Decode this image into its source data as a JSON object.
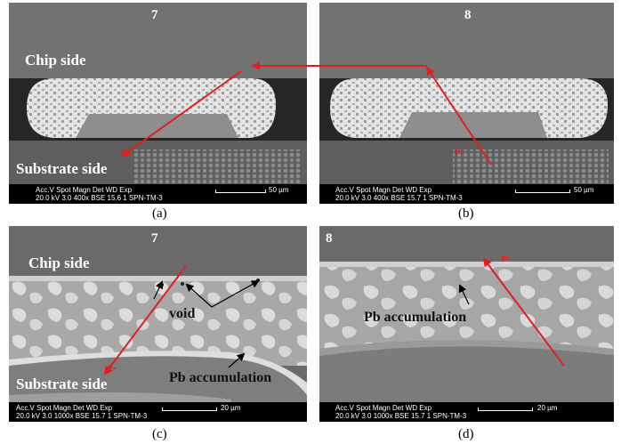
{
  "panels": {
    "a": {
      "number": "7",
      "chip_label": "Chip side",
      "substrate_label": "Substrate side",
      "electron_label": "e-",
      "databar_line1": "Acc.V  Spot Magn    Det  WD  Exp",
      "databar_line2": "20.0 kV 3.0   400x     BSE 15.6  1       SPN-TM-3",
      "scale_label": "50 µm",
      "caption": "(a)"
    },
    "b": {
      "number": "8",
      "electron_label": "e-",
      "databar_line1": "Acc.V  Spot Magn    Det  WD  Exp",
      "databar_line2": "20.0 kV 3.0   400x     BSE 15.7  1       SPN-TM-3",
      "scale_label": "50 µm",
      "caption": "(b)"
    },
    "c": {
      "number": "7",
      "chip_label": "Chip side",
      "substrate_label": "Substrate side",
      "electron_label": "e-",
      "void_label": "void",
      "pb_label": "Pb accumulation",
      "databar_line1": "Acc.V  Spot Magn    Det  WD  Exp",
      "databar_line2": "20.0 kV 3.0   1000x    BSE 15.7  1       SPN-TM-3",
      "scale_label": "20 µm",
      "caption": "(c)"
    },
    "d": {
      "number": "8",
      "electron_label": "e-",
      "pb_label": "Pb accumulation",
      "databar_line1": "Acc.V  Spot Magn    Det  WD  Exp",
      "databar_line2": "20.0 kV 3.0   1000x    BSE 15.7  1       SPN-TM-3",
      "scale_label": "20 µm",
      "caption": "(d)"
    }
  },
  "colors": {
    "arrow_red": "#e02020",
    "chip_layer": "#777777",
    "dark_band": "#222222",
    "solder_light": "#d8d8d8",
    "solder_gray": "#9a9a9a"
  }
}
